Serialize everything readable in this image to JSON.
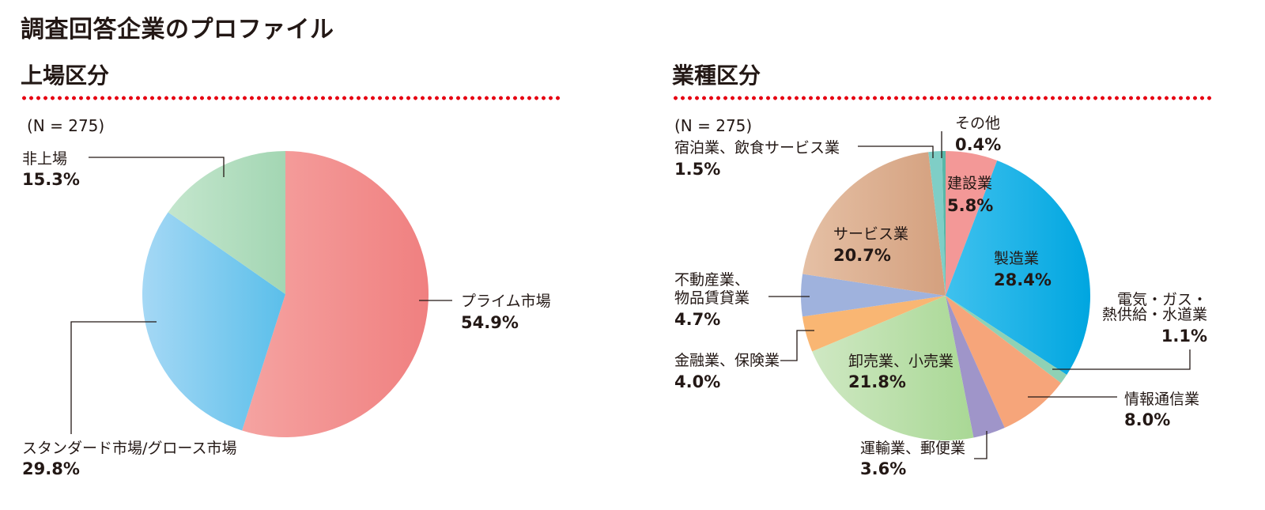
{
  "page": {
    "title": "調査回答企業のプロファイル"
  },
  "listing": {
    "title": "上場区分",
    "n_label": "(N = 275)"
  },
  "industry": {
    "title": "業種区分",
    "n_label": "(N = 275)"
  },
  "chart_data": [
    {
      "type": "pie",
      "title": "上場区分",
      "n": 275,
      "slices": [
        {
          "name": "プライム市場",
          "value": 54.9,
          "value_label": "54.9%",
          "color": [
            "#f08080",
            "#f5a3a1"
          ]
        },
        {
          "name": "スタンダード市場/グロース市場",
          "value": 29.8,
          "value_label": "29.8%",
          "color": [
            "#5bbfea",
            "#a5d8f5"
          ]
        },
        {
          "name": "非上場",
          "value": 15.3,
          "value_label": "15.3%",
          "color": [
            "#a3d6b3",
            "#c4e6cd"
          ]
        }
      ]
    },
    {
      "type": "pie",
      "title": "業種区分",
      "n": 275,
      "slices": [
        {
          "name": "建設業",
          "value": 5.8,
          "value_label": "5.8%",
          "color": [
            "#f39897",
            "#f39897"
          ]
        },
        {
          "name": "製造業",
          "value": 28.4,
          "value_label": "28.4%",
          "color": [
            "#00a6e0",
            "#3fc1ee"
          ]
        },
        {
          "name": "電気・ガス・熱供給・水道業",
          "value": 1.1,
          "value_label": "1.1%",
          "color": [
            "#8fd1b5",
            "#8fd1b5"
          ]
        },
        {
          "name": "情報通信業",
          "value": 8.0,
          "value_label": "8.0%",
          "color": [
            "#f6a57a",
            "#f6a57a"
          ]
        },
        {
          "name": "運輸業、郵便業",
          "value": 3.6,
          "value_label": "3.6%",
          "color": [
            "#9f95c9",
            "#9f95c9"
          ]
        },
        {
          "name": "卸売業、小売業",
          "value": 21.8,
          "value_label": "21.8%",
          "color": [
            "#a9d895",
            "#cfe8c3"
          ]
        },
        {
          "name": "金融業、保険業",
          "value": 4.0,
          "value_label": "4.0%",
          "color": [
            "#f9b673",
            "#f9b673"
          ]
        },
        {
          "name": "不動産業、物品賃貸業",
          "value": 4.7,
          "value_label": "4.7%",
          "color": [
            "#9fb2dd",
            "#9fb2dd"
          ]
        },
        {
          "name": "サービス業",
          "value": 20.7,
          "value_label": "20.7%",
          "color": [
            "#d4a07e",
            "#e5c0a5"
          ]
        },
        {
          "name": "宿泊業、飲食サービス業",
          "value": 1.5,
          "value_label": "1.5%",
          "color": [
            "#7fcec6",
            "#7fcec6"
          ]
        },
        {
          "name": "その他",
          "value": 0.4,
          "value_label": "0.4%",
          "color": [
            "#58b7a8",
            "#58b7a8"
          ]
        }
      ]
    }
  ]
}
